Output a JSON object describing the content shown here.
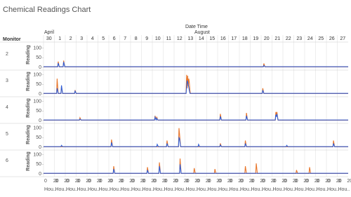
{
  "chart_data": {
    "type": "line",
    "title": "Chemical Readings Chart",
    "x_label": "Date Time",
    "row_label": "Monitor",
    "months": [
      "April",
      "August"
    ],
    "categories": [
      "30",
      "1",
      "2",
      "3",
      "4",
      "5",
      "6",
      "7",
      "8",
      "9",
      "10",
      "11",
      "12",
      "13",
      "14",
      "15",
      "16",
      "17",
      "18",
      "19",
      "20",
      "21",
      "22",
      "23",
      "24",
      "25",
      "26",
      "27"
    ],
    "hour_ticks": [
      0,
      20
    ],
    "hour_label": "Hou..",
    "y_label": "Reading",
    "ylim": [
      0,
      110
    ],
    "yticks": [
      0,
      50,
      100
    ],
    "xlim": [
      0,
      28
    ],
    "monitors": [
      {
        "name": "2",
        "series": [
          {
            "color": "#e8762b",
            "x": [
              0,
              1.3,
              1.35,
              1.45,
              1.8,
              1.85,
              1.95,
              20.2,
              20.25,
              20.35,
              28
            ],
            "values": [
              2,
              2,
              30,
              2,
              2,
              35,
              2,
              2,
              20,
              2,
              2
            ]
          },
          {
            "color": "#2f5fd8",
            "x": [
              0,
              1.3,
              1.35,
              1.45,
              1.8,
              1.85,
              1.95,
              20.2,
              20.25,
              20.35,
              28
            ],
            "values": [
              3,
              3,
              22,
              3,
              3,
              28,
              3,
              3,
              10,
              3,
              3
            ]
          }
        ]
      },
      {
        "name": "3",
        "series": [
          {
            "color": "#e8762b",
            "x": [
              0,
              1.2,
              1.25,
              1.35,
              1.6,
              1.65,
              1.75,
              2.85,
              2.9,
              3,
              13.1,
              13.15,
              13.2,
              13.25,
              13.3,
              13.35,
              13.4,
              13.45,
              13.5,
              20.1,
              20.15,
              20.25,
              28
            ],
            "values": [
              2,
              2,
              80,
              2,
              2,
              40,
              2,
              2,
              20,
              2,
              2,
              100,
              30,
              95,
              40,
              80,
              60,
              20,
              2,
              2,
              30,
              2,
              2
            ]
          },
          {
            "color": "#2f5fd8",
            "x": [
              0,
              1.2,
              1.25,
              1.35,
              1.6,
              1.65,
              1.75,
              2.85,
              2.9,
              3,
              13.1,
              13.2,
              13.3,
              13.45,
              20.1,
              20.15,
              20.25,
              28
            ],
            "values": [
              3,
              3,
              30,
              3,
              3,
              45,
              3,
              3,
              15,
              3,
              3,
              70,
              50,
              3,
              3,
              20,
              3,
              3
            ]
          }
        ]
      },
      {
        "name": "4",
        "series": [
          {
            "color": "#e8762b",
            "x": [
              0,
              3.3,
              3.35,
              3.45,
              10.2,
              10.25,
              10.35,
              10.4,
              10.5,
              16.2,
              16.25,
              16.35,
              18.6,
              18.65,
              18.75,
              21.3,
              21.35,
              21.4,
              21.45,
              21.55,
              28
            ],
            "values": [
              2,
              2,
              15,
              2,
              2,
              25,
              2,
              20,
              2,
              2,
              35,
              2,
              2,
              40,
              2,
              2,
              45,
              30,
              45,
              2,
              2
            ]
          },
          {
            "color": "#2f5fd8",
            "x": [
              0,
              3.3,
              3.35,
              3.45,
              10.2,
              10.25,
              10.35,
              10.4,
              10.5,
              16.2,
              16.25,
              16.35,
              18.6,
              18.65,
              18.75,
              21.3,
              21.35,
              21.4,
              21.45,
              21.55,
              28
            ],
            "values": [
              3,
              3,
              8,
              3,
              3,
              18,
              3,
              12,
              3,
              3,
              22,
              3,
              3,
              25,
              3,
              3,
              30,
              20,
              35,
              3,
              3
            ]
          }
        ]
      },
      {
        "name": "5",
        "series": [
          {
            "color": "#e8762b",
            "x": [
              0,
              6.2,
              6.25,
              6.35,
              11.3,
              11.35,
              11.45,
              12.4,
              12.45,
              12.5,
              12.6,
              16.2,
              16.25,
              16.35,
              18.5,
              18.55,
              18.65,
              26.6,
              26.65,
              26.75,
              28
            ],
            "values": [
              2,
              2,
              40,
              2,
              2,
              35,
              2,
              2,
              100,
              70,
              2,
              2,
              20,
              2,
              2,
              35,
              2,
              2,
              35,
              2,
              2
            ]
          },
          {
            "color": "#2f5fd8",
            "x": [
              0,
              1.6,
              1.65,
              1.75,
              6.2,
              6.25,
              6.35,
              10.4,
              10.45,
              10.55,
              11.3,
              11.35,
              11.45,
              12.4,
              12.45,
              12.5,
              12.6,
              14.2,
              14.25,
              14.35,
              16.2,
              16.25,
              16.35,
              18.5,
              18.55,
              18.65,
              22.3,
              22.35,
              22.45,
              26.6,
              26.65,
              26.75,
              28
            ],
            "values": [
              3,
              3,
              10,
              3,
              3,
              25,
              3,
              3,
              15,
              3,
              3,
              20,
              3,
              3,
              50,
              45,
              3,
              3,
              15,
              3,
              3,
              12,
              3,
              3,
              20,
              3,
              3,
              10,
              3,
              3,
              20,
              3,
              3
            ]
          }
        ]
      },
      {
        "name": "6",
        "series": [
          {
            "color": "#e8762b",
            "x": [
              0,
              6.4,
              6.45,
              6.55,
              9.5,
              9.55,
              9.65,
              10.6,
              10.65,
              10.75,
              12.5,
              12.55,
              12.65,
              13.8,
              13.85,
              13.95,
              15.7,
              15.75,
              15.85,
              18.5,
              18.55,
              18.65,
              19.5,
              19.55,
              19.65,
              23.2,
              23.25,
              23.35,
              24.4,
              24.45,
              24.55,
              28
            ],
            "values": [
              2,
              2,
              40,
              2,
              2,
              35,
              2,
              2,
              60,
              2,
              2,
              80,
              2,
              2,
              30,
              2,
              2,
              25,
              2,
              2,
              40,
              2,
              2,
              55,
              2,
              2,
              20,
              2,
              2,
              35,
              2,
              2
            ]
          },
          {
            "color": "#2f5fd8",
            "x": [
              0,
              6.4,
              6.45,
              6.55,
              9.5,
              9.55,
              9.65,
              10.6,
              10.65,
              10.75,
              12.5,
              12.55,
              12.65,
              28
            ],
            "values": [
              3,
              3,
              25,
              3,
              3,
              20,
              3,
              3,
              40,
              3,
              3,
              50,
              3,
              3
            ]
          }
        ]
      }
    ]
  }
}
